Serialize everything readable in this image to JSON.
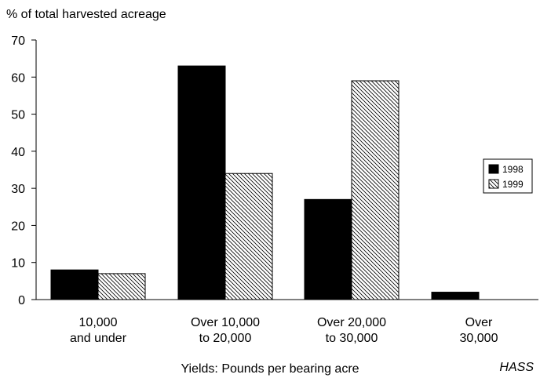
{
  "chart_data": {
    "type": "bar",
    "ylabel": "% of total harvested acreage",
    "xlabel": "Yields: Pounds per bearing acre",
    "source": "HASS",
    "categories": [
      [
        "10,000",
        "and under"
      ],
      [
        "Over 10,000",
        "to 20,000"
      ],
      [
        "Over 20,000",
        "to 30,000"
      ],
      [
        "Over",
        "30,000"
      ]
    ],
    "series": [
      {
        "name": "1998",
        "values": [
          8,
          63,
          27,
          2
        ],
        "fill": "solid",
        "color": "#000000"
      },
      {
        "name": "1999",
        "values": [
          7,
          34,
          59,
          0
        ],
        "fill": "hatch",
        "color": "#000000"
      }
    ],
    "ylim": [
      0,
      70
    ],
    "yticks": [
      "0",
      "10",
      "20",
      "30",
      "40",
      "50",
      "60",
      "70"
    ],
    "grid": false,
    "legend_position": "right"
  }
}
